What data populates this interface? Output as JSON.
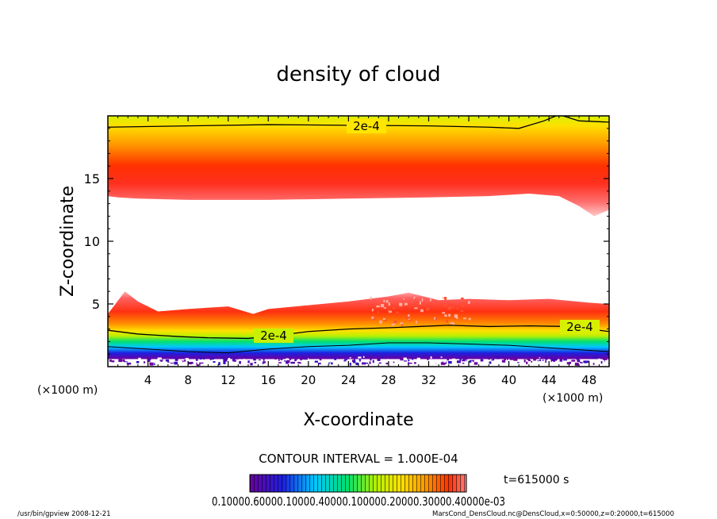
{
  "chart_data": {
    "type": "heatmap",
    "title": "density of cloud",
    "xlabel": "X-coordinate",
    "ylabel": "Z-coordinate",
    "x_unit": "(×1000 m)",
    "x_unit_right": "(×1000 m)",
    "xlim": [
      0,
      50
    ],
    "ylim": [
      0,
      20
    ],
    "x_ticks": [
      "4",
      "8",
      "12",
      "16",
      "20",
      "24",
      "28",
      "32",
      "36",
      "40",
      "44",
      "48"
    ],
    "y_ticks": [
      "5",
      "10",
      "15"
    ],
    "x_tick_values": [
      4,
      8,
      12,
      16,
      20,
      24,
      28,
      32,
      36,
      40,
      44,
      48
    ],
    "y_tick_values": [
      5,
      10,
      15
    ],
    "contour_label": "2e-4",
    "contour_interval": "CONTOUR INTERVAL = 1.000E-04",
    "time_label": "t=615000 s",
    "colorbar_labels": "0.10000.60000.10000.40000.100000.20000.30000.40000e-03",
    "colormap": [
      "#6a00a0",
      "#1e1ee0",
      "#00c8ff",
      "#00e070",
      "#b4f000",
      "#ffe000",
      "#ff9000",
      "#ff3000",
      "#ff8080"
    ],
    "upper_band": {
      "z_range": [
        13.3,
        19.5
      ],
      "peak_z": 15.5
    },
    "lower_band": {
      "z_range": [
        0.6,
        6.0
      ],
      "peak_z": 3.8
    }
  },
  "footer": {
    "left": "/usr/bin/gpview   2008-12-21",
    "right": "MarsCond_DensCloud.nc@DensCloud,x=0:50000,z=0:20000,t=615000"
  }
}
